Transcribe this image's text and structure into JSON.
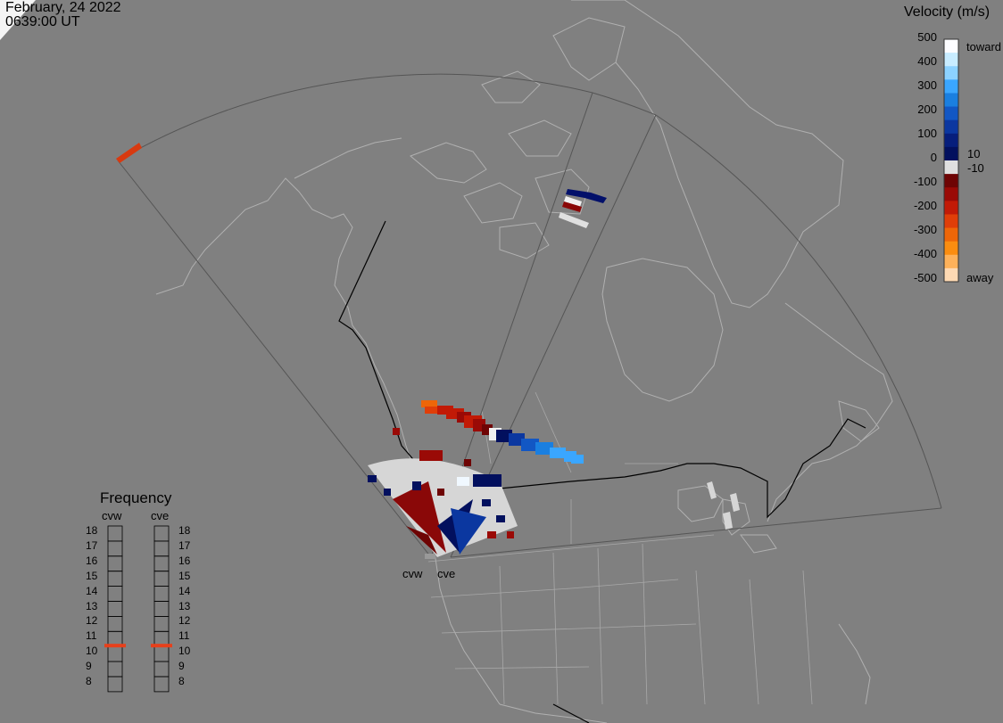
{
  "header": {
    "date": "February, 24 2022",
    "time": "0639:00 UT"
  },
  "velocity_scale": {
    "title": "Velocity (m/s)",
    "toward_label": "toward",
    "away_label": "away",
    "tick_labels": [
      "500",
      "400",
      "300",
      "200",
      "100",
      "0",
      "-100",
      "-200",
      "-300",
      "-400",
      "-500"
    ],
    "small_labels": [
      "10",
      "-10"
    ],
    "colors": [
      "#fdfdff",
      "#c8ecff",
      "#8cd2ff",
      "#3aa6ff",
      "#1a7fe0",
      "#1257c4",
      "#0b37a0",
      "#061e7c",
      "#02105e",
      "#e0e0e0",
      "#6e0404",
      "#9a0a06",
      "#c21a06",
      "#e03e08",
      "#ee6608",
      "#fb8d10",
      "#fdb15a",
      "#fdd9b3"
    ]
  },
  "frequency_panel": {
    "title": "Frequency",
    "radars": [
      "cvw",
      "cve"
    ],
    "levels": [
      "18",
      "17",
      "16",
      "15",
      "14",
      "13",
      "12",
      "11",
      "10",
      "9",
      "8"
    ],
    "current_cvw": 11,
    "current_cve": 11,
    "marker_color": "#e8401a"
  },
  "radar_sites": [
    "cvw",
    "cve"
  ],
  "map": {
    "background": "#808080",
    "border_color": "#000000",
    "coastline_color": "#b4b4b4",
    "fov_color": "#555555"
  }
}
